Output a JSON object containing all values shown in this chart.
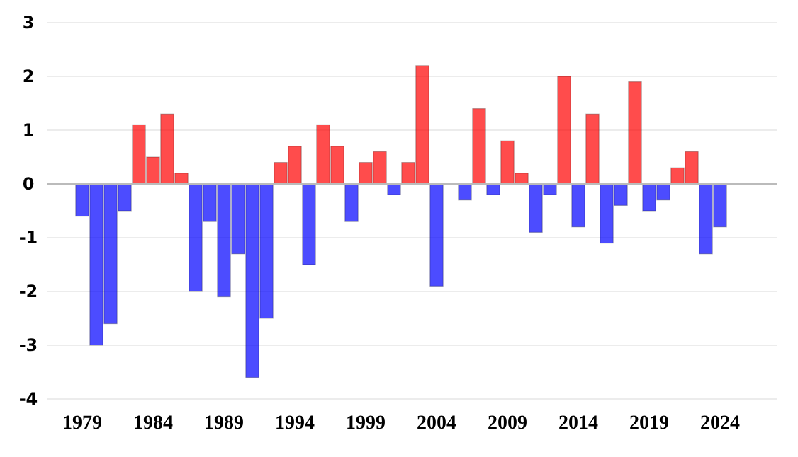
{
  "chart_data": {
    "type": "bar",
    "categories": [
      "1979",
      null,
      null,
      null,
      null,
      "1984",
      null,
      null,
      null,
      null,
      "1989",
      null,
      null,
      null,
      null,
      "1994",
      null,
      null,
      null,
      null,
      "1999",
      null,
      null,
      null,
      null,
      "2004",
      null,
      null,
      null,
      null,
      "2009",
      null,
      null,
      null,
      null,
      "2014",
      null,
      null,
      null,
      null,
      "2019",
      null,
      null,
      null,
      null,
      "2024"
    ],
    "values": [
      -0.6,
      -3.0,
      -2.6,
      -0.5,
      1.1,
      0.5,
      1.3,
      0.2,
      -2.0,
      -0.7,
      -2.1,
      -1.3,
      -3.6,
      -2.5,
      0.4,
      0.7,
      -1.5,
      1.1,
      0.7,
      -0.7,
      0.4,
      0.6,
      -0.2,
      0.4,
      2.2,
      -1.9,
      0,
      -0.3,
      1.4,
      -0.2,
      0.8,
      0.2,
      -0.9,
      -0.2,
      2.0,
      -0.8,
      1.3,
      -1.1,
      -0.4,
      1.9,
      -0.5,
      -0.3,
      0.3,
      0.6,
      -1.3,
      -0.8
    ],
    "colors": [
      "#0000ff",
      "#0000ff",
      "#0000ff",
      "#0000ff",
      "#ff0000",
      "#ff0000",
      "#ff0000",
      "#ff0000",
      "#0000ff",
      "#0000ff",
      "#0000ff",
      "#0000ff",
      "#0000ff",
      "#0000ff",
      "#ff0000",
      "#ff0000",
      "#0000ff",
      "#ff0000",
      "#ff0000",
      "#0000ff",
      "#ff0000",
      "#ff0000",
      "#0000ff",
      "#ff0000",
      "#ff0000",
      "#0000ff",
      "#ff0000",
      "#0000ff",
      "#ff0000",
      "#0000ff",
      "#ff0000",
      "#ff0000",
      "#0000ff",
      "#0000ff",
      "#ff0000",
      "#0000ff",
      "#ff0000",
      "#0000ff",
      "#0000ff",
      "#ff0000",
      "#0000ff",
      "#0000ff",
      "#ff0000",
      "#ff0000",
      "#0000ff",
      "#0000ff"
    ],
    "ylim": [
      -4,
      3
    ],
    "yticks": [
      -4,
      -3,
      -2,
      -1,
      0,
      1,
      2,
      3
    ],
    "grid": "y"
  }
}
